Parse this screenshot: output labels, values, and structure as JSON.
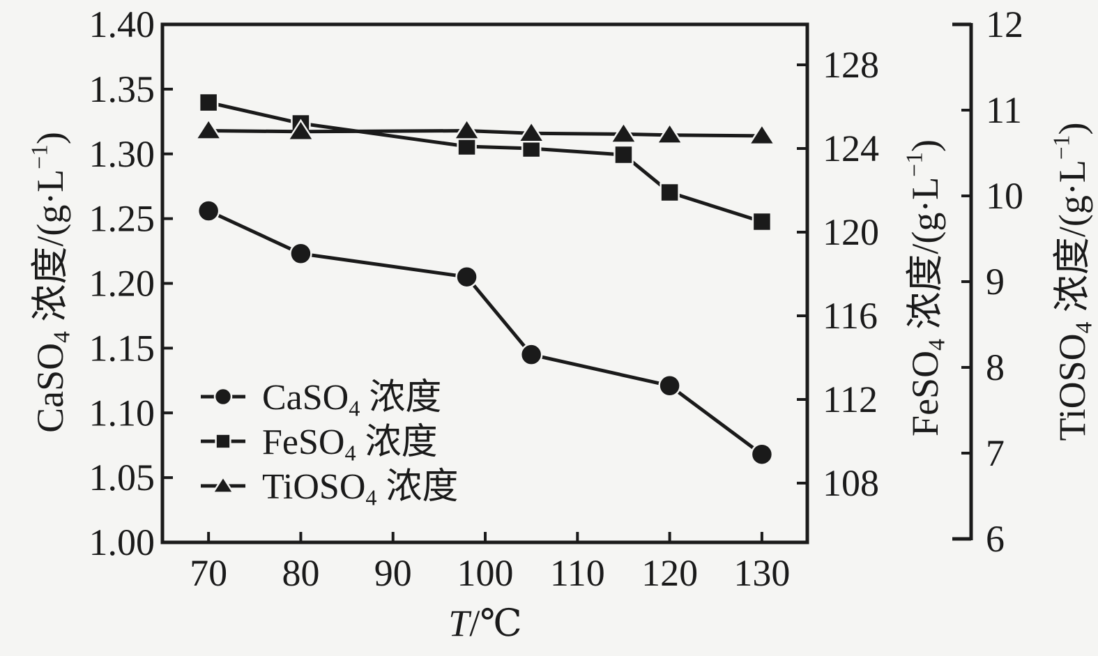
{
  "page": {
    "background": "#f5f5f3",
    "ink": "#1a1a1a"
  },
  "chart_data": {
    "type": "line",
    "title": "",
    "xlabel": "T/℃",
    "grid": false,
    "legend_position": "inside lower-left",
    "axes": {
      "x": {
        "label": "T/℃",
        "ticks": [
          70,
          80,
          90,
          100,
          110,
          120,
          130
        ],
        "range": [
          65,
          135
        ]
      },
      "left": {
        "label": "CaSO₄ 浓度/(g·L⁻¹)",
        "ticks": [
          1.0,
          1.05,
          1.1,
          1.15,
          1.2,
          1.25,
          1.3,
          1.35,
          1.4
        ],
        "range": [
          1.0,
          1.4
        ]
      },
      "right1": {
        "label": "FeSO₄ 浓度/(g·L⁻¹)",
        "ticks": [
          108,
          112,
          116,
          120,
          124,
          128
        ],
        "range": [
          105.2,
          129.9
        ]
      },
      "right2": {
        "label": "TiOSO₄ 浓度/(g·L⁻¹)",
        "ticks": [
          6,
          7,
          8,
          9,
          10,
          11,
          12
        ],
        "range": [
          6,
          12
        ]
      }
    },
    "series": [
      {
        "name": "CaSO₄ 浓度",
        "marker": "circle",
        "axis": "left",
        "x": [
          70,
          80,
          98,
          105,
          120,
          130
        ],
        "values": [
          1.256,
          1.223,
          1.205,
          1.145,
          1.121,
          1.068
        ]
      },
      {
        "name": "FeSO₄ 浓度",
        "marker": "square",
        "axis": "right1",
        "x": [
          70,
          80,
          98,
          105,
          115,
          120,
          130
        ],
        "values": [
          126.2,
          125.2,
          124.1,
          124.0,
          123.7,
          121.9,
          120.5
        ]
      },
      {
        "name": "TiOSO₄ 浓度",
        "marker": "triangle",
        "axis": "right2",
        "x": [
          70,
          80,
          98,
          105,
          115,
          120,
          130
        ],
        "values": [
          10.76,
          10.75,
          10.76,
          10.73,
          10.72,
          10.71,
          10.7
        ]
      }
    ]
  },
  "labels": {
    "x_tick_labels": [
      "70",
      "80",
      "90",
      "100",
      "110",
      "120",
      "130"
    ],
    "left_tick_labels": [
      "1.00",
      "1.05",
      "1.10",
      "1.15",
      "1.20",
      "1.25",
      "1.30",
      "1.35",
      "1.40"
    ],
    "right1_tick_labels": [
      "108",
      "112",
      "116",
      "120",
      "124",
      "128"
    ],
    "right2_tick_labels": [
      "6",
      "7",
      "8",
      "9",
      "10",
      "11",
      "12"
    ],
    "x_title_runs": [
      {
        "t": "T",
        "s": "it"
      },
      {
        "t": "/℃"
      }
    ],
    "left_title_runs": [
      {
        "t": "CaSO"
      },
      {
        "t": "4",
        "s": "sub"
      },
      {
        "t": " 浓度/(g·L"
      },
      {
        "t": "−1",
        "s": "sup"
      },
      {
        "t": ")"
      }
    ],
    "right1_title_runs": [
      {
        "t": "FeSO"
      },
      {
        "t": "4",
        "s": "sub"
      },
      {
        "t": " 浓度/(g·L"
      },
      {
        "t": "−1",
        "s": "sup"
      },
      {
        "t": ")"
      }
    ],
    "right2_title_runs": [
      {
        "t": "TiOSO"
      },
      {
        "t": "4",
        "s": "sub"
      },
      {
        "t": " 浓度/(g·L"
      },
      {
        "t": "−1",
        "s": "sup"
      },
      {
        "t": ")"
      }
    ],
    "legend": [
      {
        "marker": "circle",
        "runs": [
          {
            "t": "CaSO"
          },
          {
            "t": "4",
            "s": "sub"
          },
          {
            "t": " 浓度"
          }
        ]
      },
      {
        "marker": "square",
        "runs": [
          {
            "t": "FeSO"
          },
          {
            "t": "4",
            "s": "sub"
          },
          {
            "t": " 浓度"
          }
        ]
      },
      {
        "marker": "triangle",
        "runs": [
          {
            "t": "TiOSO"
          },
          {
            "t": "4",
            "s": "sub"
          },
          {
            "t": " 浓度"
          }
        ]
      }
    ]
  }
}
